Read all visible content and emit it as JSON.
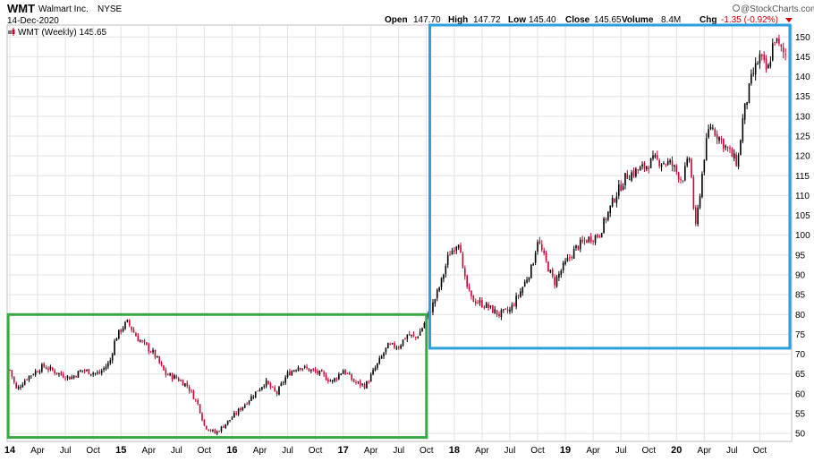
{
  "header": {
    "ticker": "WMT",
    "company": "Walmart Inc.",
    "exchange": "NYSE",
    "date": "14-Dec-2020",
    "open_label": "Open",
    "open_value": "147.70",
    "high_label": "High",
    "high_value": "147.72",
    "low_label": "Low",
    "low_value": "145.40",
    "close_label": "Close",
    "close_value": "145.65",
    "volume_label": "Volume",
    "volume_value": "8.4M",
    "chg_label": "Chg",
    "chg_value": "-1.35 (-0.92%)",
    "watermark": "@StockCharts.com"
  },
  "legend": {
    "label": "WMT (Weekly) 145.65"
  },
  "colors": {
    "up": "#000000",
    "down": "#cc0033",
    "grid": "#e2e2e2",
    "green_box": "#3aa845",
    "blue_box": "#2aa1dd",
    "chg_negative": "#cc0000"
  },
  "chart_data": {
    "type": "candlestick",
    "interval": "weekly",
    "ylim": [
      48,
      153
    ],
    "y_ticks": [
      50,
      55,
      60,
      65,
      70,
      75,
      80,
      85,
      90,
      95,
      100,
      105,
      110,
      115,
      120,
      125,
      130,
      135,
      140,
      145,
      150
    ],
    "y_axis_position": "right",
    "grid": true,
    "x_start": 2014.0,
    "x_end": 2020.98,
    "x_ticks": [
      {
        "label": "14",
        "t": 2014.0,
        "bold": true
      },
      {
        "label": "Apr",
        "t": 2014.25
      },
      {
        "label": "Jul",
        "t": 2014.5
      },
      {
        "label": "Oct",
        "t": 2014.75
      },
      {
        "label": "15",
        "t": 2015.0,
        "bold": true
      },
      {
        "label": "Apr",
        "t": 2015.25
      },
      {
        "label": "Jul",
        "t": 2015.5
      },
      {
        "label": "Oct",
        "t": 2015.75
      },
      {
        "label": "16",
        "t": 2016.0,
        "bold": true
      },
      {
        "label": "Apr",
        "t": 2016.25
      },
      {
        "label": "Jul",
        "t": 2016.5
      },
      {
        "label": "Oct",
        "t": 2016.75
      },
      {
        "label": "17",
        "t": 2017.0,
        "bold": true
      },
      {
        "label": "Apr",
        "t": 2017.25
      },
      {
        "label": "Jul",
        "t": 2017.5
      },
      {
        "label": "Oct",
        "t": 2017.75
      },
      {
        "label": "18",
        "t": 2018.0,
        "bold": true
      },
      {
        "label": "Apr",
        "t": 2018.25
      },
      {
        "label": "Jul",
        "t": 2018.5
      },
      {
        "label": "Oct",
        "t": 2018.75
      },
      {
        "label": "19",
        "t": 2019.0,
        "bold": true
      },
      {
        "label": "Apr",
        "t": 2019.25
      },
      {
        "label": "Jul",
        "t": 2019.5
      },
      {
        "label": "Oct",
        "t": 2019.75
      },
      {
        "label": "20",
        "t": 2020.0,
        "bold": true
      },
      {
        "label": "Apr",
        "t": 2020.25
      },
      {
        "label": "Jul",
        "t": 2020.5
      },
      {
        "label": "Oct",
        "t": 2020.75
      }
    ],
    "price_path": [
      [
        2014.0,
        66
      ],
      [
        2014.06,
        61
      ],
      [
        2014.15,
        64
      ],
      [
        2014.3,
        67
      ],
      [
        2014.45,
        65
      ],
      [
        2014.55,
        64
      ],
      [
        2014.65,
        66
      ],
      [
        2014.8,
        65
      ],
      [
        2014.9,
        68
      ],
      [
        2014.95,
        74
      ],
      [
        2015.02,
        77
      ],
      [
        2015.06,
        78
      ],
      [
        2015.15,
        74
      ],
      [
        2015.3,
        70
      ],
      [
        2015.4,
        65
      ],
      [
        2015.5,
        64
      ],
      [
        2015.6,
        62
      ],
      [
        2015.7,
        57
      ],
      [
        2015.75,
        52
      ],
      [
        2015.85,
        50
      ],
      [
        2016.0,
        54
      ],
      [
        2016.1,
        57
      ],
      [
        2016.2,
        60
      ],
      [
        2016.3,
        63
      ],
      [
        2016.4,
        60
      ],
      [
        2016.5,
        65
      ],
      [
        2016.6,
        67
      ],
      [
        2016.7,
        66
      ],
      [
        2016.8,
        65
      ],
      [
        2016.9,
        63
      ],
      [
        2017.0,
        66
      ],
      [
        2017.1,
        63
      ],
      [
        2017.2,
        62
      ],
      [
        2017.3,
        67
      ],
      [
        2017.4,
        72
      ],
      [
        2017.5,
        72
      ],
      [
        2017.58,
        75
      ],
      [
        2017.65,
        74
      ],
      [
        2017.7,
        76
      ],
      [
        2017.8,
        82
      ],
      [
        2017.88,
        88
      ],
      [
        2017.95,
        95
      ],
      [
        2018.05,
        99
      ],
      [
        2018.08,
        90
      ],
      [
        2018.15,
        84
      ],
      [
        2018.3,
        82
      ],
      [
        2018.4,
        80
      ],
      [
        2018.5,
        81
      ],
      [
        2018.6,
        86
      ],
      [
        2018.7,
        92
      ],
      [
        2018.75,
        99
      ],
      [
        2018.8,
        95
      ],
      [
        2018.9,
        88
      ],
      [
        2018.98,
        92
      ],
      [
        2019.1,
        97
      ],
      [
        2019.2,
        99
      ],
      [
        2019.3,
        100
      ],
      [
        2019.45,
        110
      ],
      [
        2019.55,
        115
      ],
      [
        2019.7,
        117
      ],
      [
        2019.8,
        119
      ],
      [
        2019.95,
        118
      ],
      [
        2020.05,
        114
      ],
      [
        2020.12,
        120
      ],
      [
        2020.17,
        101
      ],
      [
        2020.25,
        120
      ],
      [
        2020.3,
        128
      ],
      [
        2020.35,
        126
      ],
      [
        2020.5,
        120
      ],
      [
        2020.55,
        118
      ],
      [
        2020.6,
        130
      ],
      [
        2020.68,
        140
      ],
      [
        2020.75,
        145
      ],
      [
        2020.82,
        141
      ],
      [
        2020.88,
        150
      ],
      [
        2020.93,
        147
      ],
      [
        2020.97,
        145.65
      ]
    ],
    "annotations": [
      {
        "type": "rectangle",
        "color": "green",
        "t0": 2013.98,
        "t1": 2017.75,
        "y_top": 80,
        "y_bottom": 49
      },
      {
        "type": "rectangle",
        "color": "blue",
        "t0": 2017.78,
        "t1": 2021.02,
        "y_top": 153,
        "y_bottom": 71.5
      }
    ]
  }
}
